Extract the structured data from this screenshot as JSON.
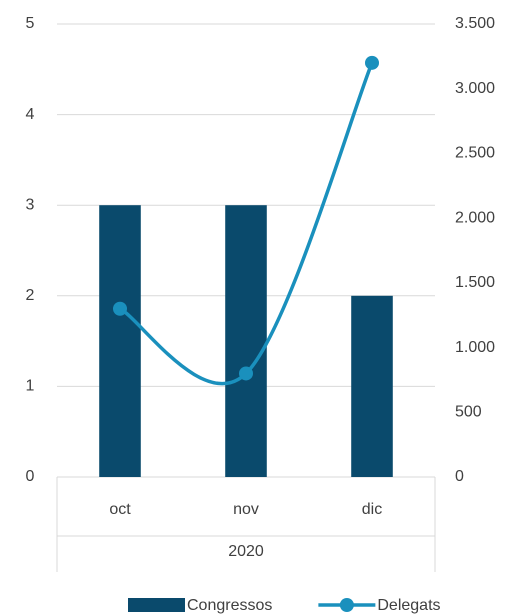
{
  "chart_data": {
    "type": "bar",
    "categories": [
      "oct",
      "nov",
      "dic"
    ],
    "group": "2020",
    "series": [
      {
        "name": "Congressos",
        "type": "bar",
        "color": "#0a4a6c",
        "values": [
          3,
          3,
          2
        ]
      },
      {
        "name": "Delegats",
        "type": "line",
        "axis": "y2",
        "color": "#1a90bd",
        "values": [
          1300,
          800,
          3200
        ]
      }
    ],
    "ylim": [
      0,
      5
    ],
    "yticks": [
      0,
      1,
      2,
      3,
      4,
      5
    ],
    "y2lim": [
      0,
      3500
    ],
    "y2ticks": [
      0,
      500,
      {
        "value": 1000,
        "label": "1.000"
      },
      {
        "value": 1500,
        "label": "1.500"
      },
      {
        "value": 2000,
        "label": "2.000"
      },
      {
        "value": 2500,
        "label": "2.500"
      },
      {
        "value": 3000,
        "label": "3.000"
      },
      {
        "value": 3500,
        "label": "3.500"
      }
    ],
    "grid": true,
    "legend": "bottom"
  }
}
